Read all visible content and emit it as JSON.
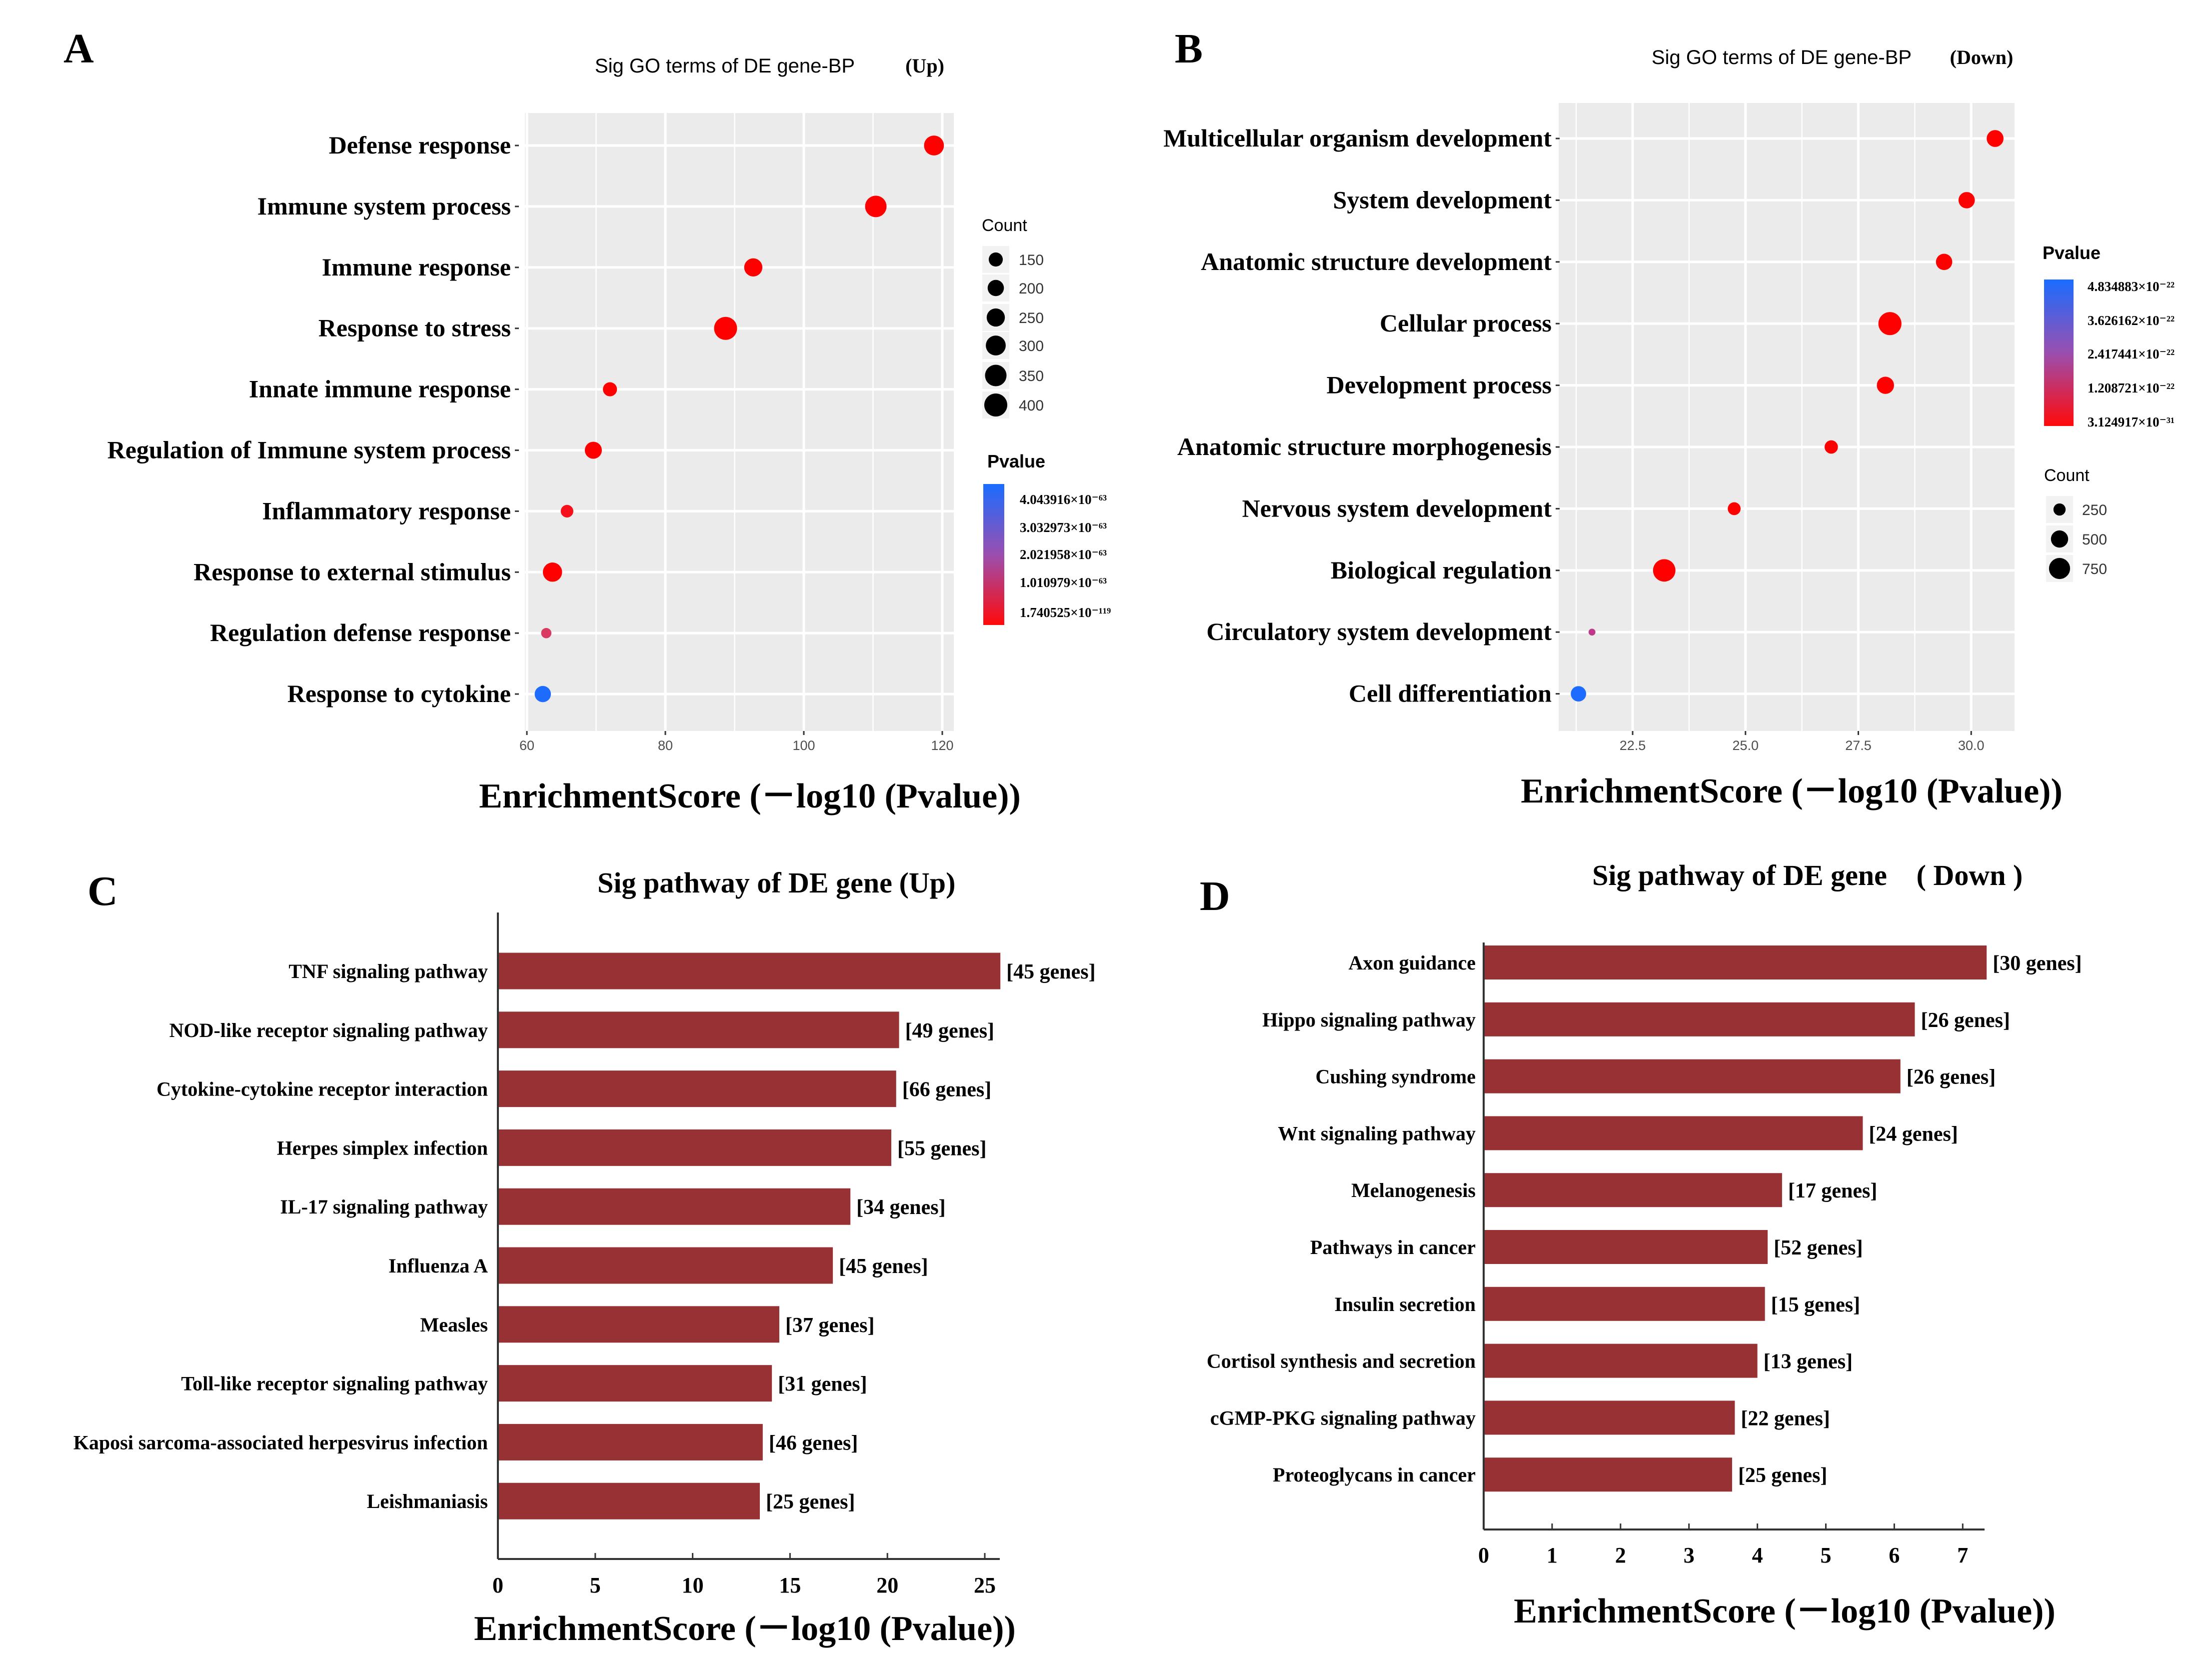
{
  "panel_letters": [
    "A",
    "B",
    "C",
    "D"
  ],
  "chart_data": [
    {
      "panel": "A",
      "type": "scatter",
      "title": "Sig GO terms of DE gene-BP",
      "title_suffix": "(Up)",
      "xlabel": "EnrichmentScore (－log10 (Pvalue))",
      "xlim": [
        59.7,
        122
      ],
      "xticks": [
        "60",
        "80",
        "100",
        "120"
      ],
      "xtick_values": [
        60,
        80,
        100,
        120
      ],
      "grid": true,
      "categories": [
        "Defense response",
        "Immune system process",
        "Immune response",
        "Response  to stress",
        "Innate immune response",
        "Regulation of Immune system process",
        "Inflammatory  response",
        "Response to external stimulus",
        "Regulation defense  response",
        "Response to cytokine"
      ],
      "x": [
        118.8,
        110.4,
        92.7,
        88.7,
        72.0,
        69.6,
        65.8,
        63.7,
        62.8,
        62.3
      ],
      "count": [
        300,
        350,
        250,
        400,
        150,
        220,
        120,
        280,
        80,
        200
      ],
      "point_colors": [
        "#ff0000",
        "#ff0000",
        "#ff0000",
        "#ff0000",
        "#ff0000",
        "#ff0000",
        "#f5101c",
        "#ff0000",
        "#d83a62",
        "#1e6bff"
      ],
      "legend_count": {
        "title": "Count",
        "values": [
          150,
          200,
          250,
          300,
          350,
          400
        ],
        "labels": [
          "150",
          "200",
          "250",
          "300",
          "350",
          "400"
        ]
      },
      "legend_pvalue": {
        "title": "Pvalue",
        "labels": [
          "4.043916×10⁻⁶³",
          "3.032973×10⁻⁶³",
          "2.021958×10⁻⁶³",
          "1.010979×10⁻⁶³",
          "1.740525×10⁻¹¹⁹"
        ],
        "colors": [
          "#1a6cff",
          "#9a4fb0",
          "#ff0a0a"
        ]
      },
      "legend_placement": "right"
    },
    {
      "panel": "B",
      "type": "scatter",
      "title": "Sig GO terms of DE gene-BP",
      "title_suffix": "(Down)",
      "xlabel": "EnrichmentScore (－log10 (Pvalue))",
      "xlim": [
        21.0,
        31.1
      ],
      "xticks": [
        "22.5",
        "25.0",
        "27.5",
        "30.0"
      ],
      "xtick_values": [
        22.5,
        25.0,
        27.5,
        30.0
      ],
      "grid": true,
      "categories": [
        "Multicellular organism development",
        "System development",
        "Anatomic structure development",
        "Cellular process",
        "Development  process",
        "Anatomic structure morphogenesis",
        "Nervous  system  development",
        "Biological   regulation",
        "Circulatory  system  development",
        "Cell  differentiation"
      ],
      "x": [
        30.53,
        29.9,
        29.4,
        28.2,
        28.1,
        26.9,
        24.75,
        23.2,
        21.6,
        21.3
      ],
      "count": [
        480,
        450,
        450,
        900,
        500,
        300,
        280,
        850,
        80,
        400
      ],
      "point_colors": [
        "#ff0000",
        "#ff0000",
        "#ff0000",
        "#ff0000",
        "#ff0000",
        "#ff0000",
        "#ff0000",
        "#ff0000",
        "#c0388a",
        "#1e6bff"
      ],
      "legend_count": {
        "title": "Count",
        "values": [
          250,
          500,
          750
        ],
        "labels": [
          "250",
          "500",
          "750"
        ]
      },
      "legend_pvalue": {
        "title": "Pvalue",
        "labels": [
          "4.834883×10⁻²²",
          "3.626162×10⁻²²",
          "2.417441×10⁻²²",
          "1.208721×10⁻²²",
          "3.124917×10⁻³¹"
        ],
        "colors": [
          "#1a6cff",
          "#9a4fb0",
          "#ff0a0a"
        ]
      },
      "legend_placement": "right"
    },
    {
      "panel": "C",
      "type": "bar",
      "orientation": "horizontal",
      "title": "Sig pathway of DE gene",
      "title_suffix": "(Up)",
      "xlabel": "EnrichmentScore (－log10 (Pvalue))",
      "xlim": [
        0,
        25.8
      ],
      "xticks": [
        "0",
        "5",
        "10",
        "15",
        "20",
        "25"
      ],
      "xtick_values": [
        0,
        5,
        10,
        15,
        20,
        25
      ],
      "bar_color": "#973133",
      "categories": [
        "TNF signaling pathway",
        "NOD-like receptor signaling pathway",
        "Cytokine-cytokine receptor interaction",
        "Herpes simplex infection",
        "IL-17 signaling pathway",
        "Influenza A",
        "Measles",
        "Toll-like receptor signaling pathway",
        "Kaposi sarcoma-associated herpesvirus infection",
        "Leishmaniasis"
      ],
      "values": [
        25.8,
        20.6,
        20.45,
        20.2,
        18.1,
        17.2,
        14.45,
        14.07,
        13.6,
        13.45
      ],
      "data_labels": [
        "[45 genes]",
        "[49 genes]",
        "[66 genes]",
        "[55 genes]",
        "[34 genes]",
        "[45 genes]",
        "[37 genes]",
        "[31 genes]",
        "[46 genes]",
        "[25 genes]"
      ]
    },
    {
      "panel": "D",
      "type": "bar",
      "orientation": "horizontal",
      "title": "Sig pathway of DE gene",
      "title_suffix": "( Down )",
      "xlabel": "EnrichmentScore (－log10 (Pvalue))",
      "xlim": [
        0,
        7.35
      ],
      "xticks": [
        "0",
        "1",
        "2",
        "3",
        "4",
        "5",
        "6",
        "7"
      ],
      "xtick_values": [
        0,
        1,
        2,
        3,
        4,
        5,
        6,
        7
      ],
      "bar_color": "#973133",
      "categories": [
        "Axon guidance",
        "Hippo signaling pathway",
        "Cushing syndrome",
        "Wnt signaling pathway",
        "Melanogenesis",
        "Pathways in cancer",
        "Insulin secretion",
        "Cortisol synthesis and secretion",
        "cGMP-PKG signaling pathway",
        "Proteoglycans in cancer"
      ],
      "values": [
        7.35,
        6.3,
        6.09,
        5.54,
        4.36,
        4.15,
        4.11,
        4.0,
        3.67,
        3.63
      ],
      "data_labels": [
        "[30 genes]",
        "[26 genes]",
        "[26 genes]",
        "[24 genes]",
        "[17 genes]",
        "[52 genes]",
        "[15 genes]",
        "[13 genes]",
        "[22 genes]",
        "[25 genes]"
      ]
    }
  ]
}
